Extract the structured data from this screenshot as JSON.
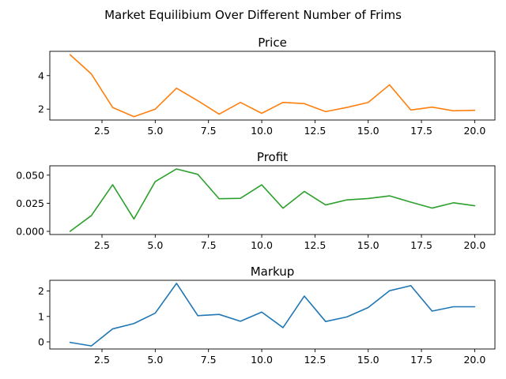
{
  "figure": {
    "suptitle": "Market Equilibium Over Different Number of Frims"
  },
  "chart_data": [
    {
      "type": "line",
      "title": "Price",
      "color": "#ff7f0e",
      "x": [
        1,
        2,
        3,
        4,
        5,
        6,
        7,
        8,
        9,
        10,
        11,
        12,
        13,
        14,
        15,
        16,
        17,
        18,
        19,
        20
      ],
      "values": [
        5.25,
        4.1,
        2.1,
        1.55,
        2.0,
        3.25,
        2.5,
        1.7,
        2.4,
        1.75,
        2.4,
        2.33,
        1.85,
        2.1,
        2.4,
        3.45,
        1.95,
        2.12,
        1.9,
        1.93
      ],
      "xlim": [
        0.05,
        20.95
      ],
      "ylim": [
        1.35,
        5.45
      ],
      "xticks": [
        2.5,
        5.0,
        7.5,
        10.0,
        12.5,
        15.0,
        17.5,
        20.0
      ],
      "xtick_labels": [
        "2.5",
        "5.0",
        "7.5",
        "10.0",
        "12.5",
        "15.0",
        "17.5",
        "20.0"
      ],
      "yticks": [
        2,
        4
      ],
      "ytick_labels": [
        "2",
        "4"
      ],
      "grid": false
    },
    {
      "type": "line",
      "title": "Profit",
      "color": "#2ca02c",
      "x": [
        1,
        2,
        3,
        4,
        5,
        6,
        7,
        8,
        9,
        10,
        11,
        12,
        13,
        14,
        15,
        16,
        17,
        18,
        19,
        20
      ],
      "values": [
        0.0,
        0.014,
        0.0415,
        0.011,
        0.0443,
        0.0555,
        0.0507,
        0.029,
        0.0294,
        0.0414,
        0.0206,
        0.0355,
        0.0235,
        0.028,
        0.0292,
        0.0316,
        0.026,
        0.0207,
        0.0254,
        0.0228
      ],
      "xlim": [
        0.05,
        20.95
      ],
      "ylim": [
        -0.0028,
        0.0583
      ],
      "xticks": [
        2.5,
        5.0,
        7.5,
        10.0,
        12.5,
        15.0,
        17.5,
        20.0
      ],
      "xtick_labels": [
        "2.5",
        "5.0",
        "7.5",
        "10.0",
        "12.5",
        "15.0",
        "17.5",
        "20.0"
      ],
      "yticks": [
        0.0,
        0.025,
        0.05
      ],
      "ytick_labels": [
        "0.000",
        "0.025",
        "0.050"
      ],
      "grid": false
    },
    {
      "type": "line",
      "title": "Markup",
      "color": "#1f77b4",
      "x": [
        1,
        2,
        3,
        4,
        5,
        6,
        7,
        8,
        9,
        10,
        11,
        12,
        13,
        14,
        15,
        16,
        17,
        18,
        19,
        20
      ],
      "values": [
        -0.02,
        -0.16,
        0.51,
        0.72,
        1.13,
        2.3,
        1.03,
        1.08,
        0.81,
        1.17,
        0.56,
        1.8,
        0.8,
        0.98,
        1.35,
        2.01,
        2.21,
        1.21,
        1.38,
        1.38
      ],
      "xlim": [
        0.05,
        20.95
      ],
      "ylim": [
        -0.28,
        2.42
      ],
      "xticks": [
        2.5,
        5.0,
        7.5,
        10.0,
        12.5,
        15.0,
        17.5,
        20.0
      ],
      "xtick_labels": [
        "2.5",
        "5.0",
        "7.5",
        "10.0",
        "12.5",
        "15.0",
        "17.5",
        "20.0"
      ],
      "yticks": [
        0,
        1,
        2
      ],
      "ytick_labels": [
        "0",
        "1",
        "2"
      ],
      "grid": false
    }
  ]
}
